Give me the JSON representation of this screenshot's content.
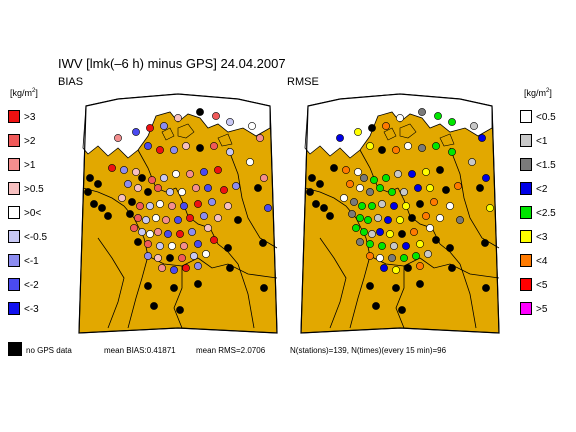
{
  "title": "IWV [lmk(–6 h) minus GPS] 24.04.2007",
  "panels": {
    "left_label": "BIAS",
    "right_label": "RMSE"
  },
  "unit_label_base": "[kg/m",
  "unit_label_sup": "2",
  "unit_label_close": "]",
  "colors": {
    "land": "#e2a800",
    "water": "#ffffff",
    "border": "#000000",
    "frame": "#000000"
  },
  "bias_legend": [
    {
      "label": ">3",
      "color": "#ee1111"
    },
    {
      "label": ">2",
      "color": "#f05a5a"
    },
    {
      "label": ">1",
      "color": "#f48e8e"
    },
    {
      "label": ">0.5",
      "color": "#f7c0c0"
    },
    {
      "label": ">0<",
      "color": "#ffffff"
    },
    {
      "label": "<-0.5",
      "color": "#c8c8f4"
    },
    {
      "label": "<-1",
      "color": "#8c8cf0"
    },
    {
      "label": "<-2",
      "color": "#4a4af0"
    },
    {
      "label": "<-3",
      "color": "#1111ee"
    }
  ],
  "rmse_legend": [
    {
      "label": "<0.5",
      "color": "#ffffff"
    },
    {
      "label": "<1",
      "color": "#c8c8c8"
    },
    {
      "label": "<1.5",
      "color": "#7a7a7a"
    },
    {
      "label": "<2",
      "color": "#0000e6"
    },
    {
      "label": "<2.5",
      "color": "#00e600"
    },
    {
      "label": "<3",
      "color": "#ffff00"
    },
    {
      "label": "<4",
      "color": "#ff7a00"
    },
    {
      "label": "<5",
      "color": "#ff0000"
    },
    {
      "label": ">5",
      "color": "#ff00ff"
    }
  ],
  "no_gps_label": "no GPS data",
  "stats": {
    "mean_bias": "mean BIAS:0.41871",
    "mean_rms": "mean RMS=2.0706",
    "counts": "N(stations)=139, N(times)(every 15 min)=96"
  }
}
